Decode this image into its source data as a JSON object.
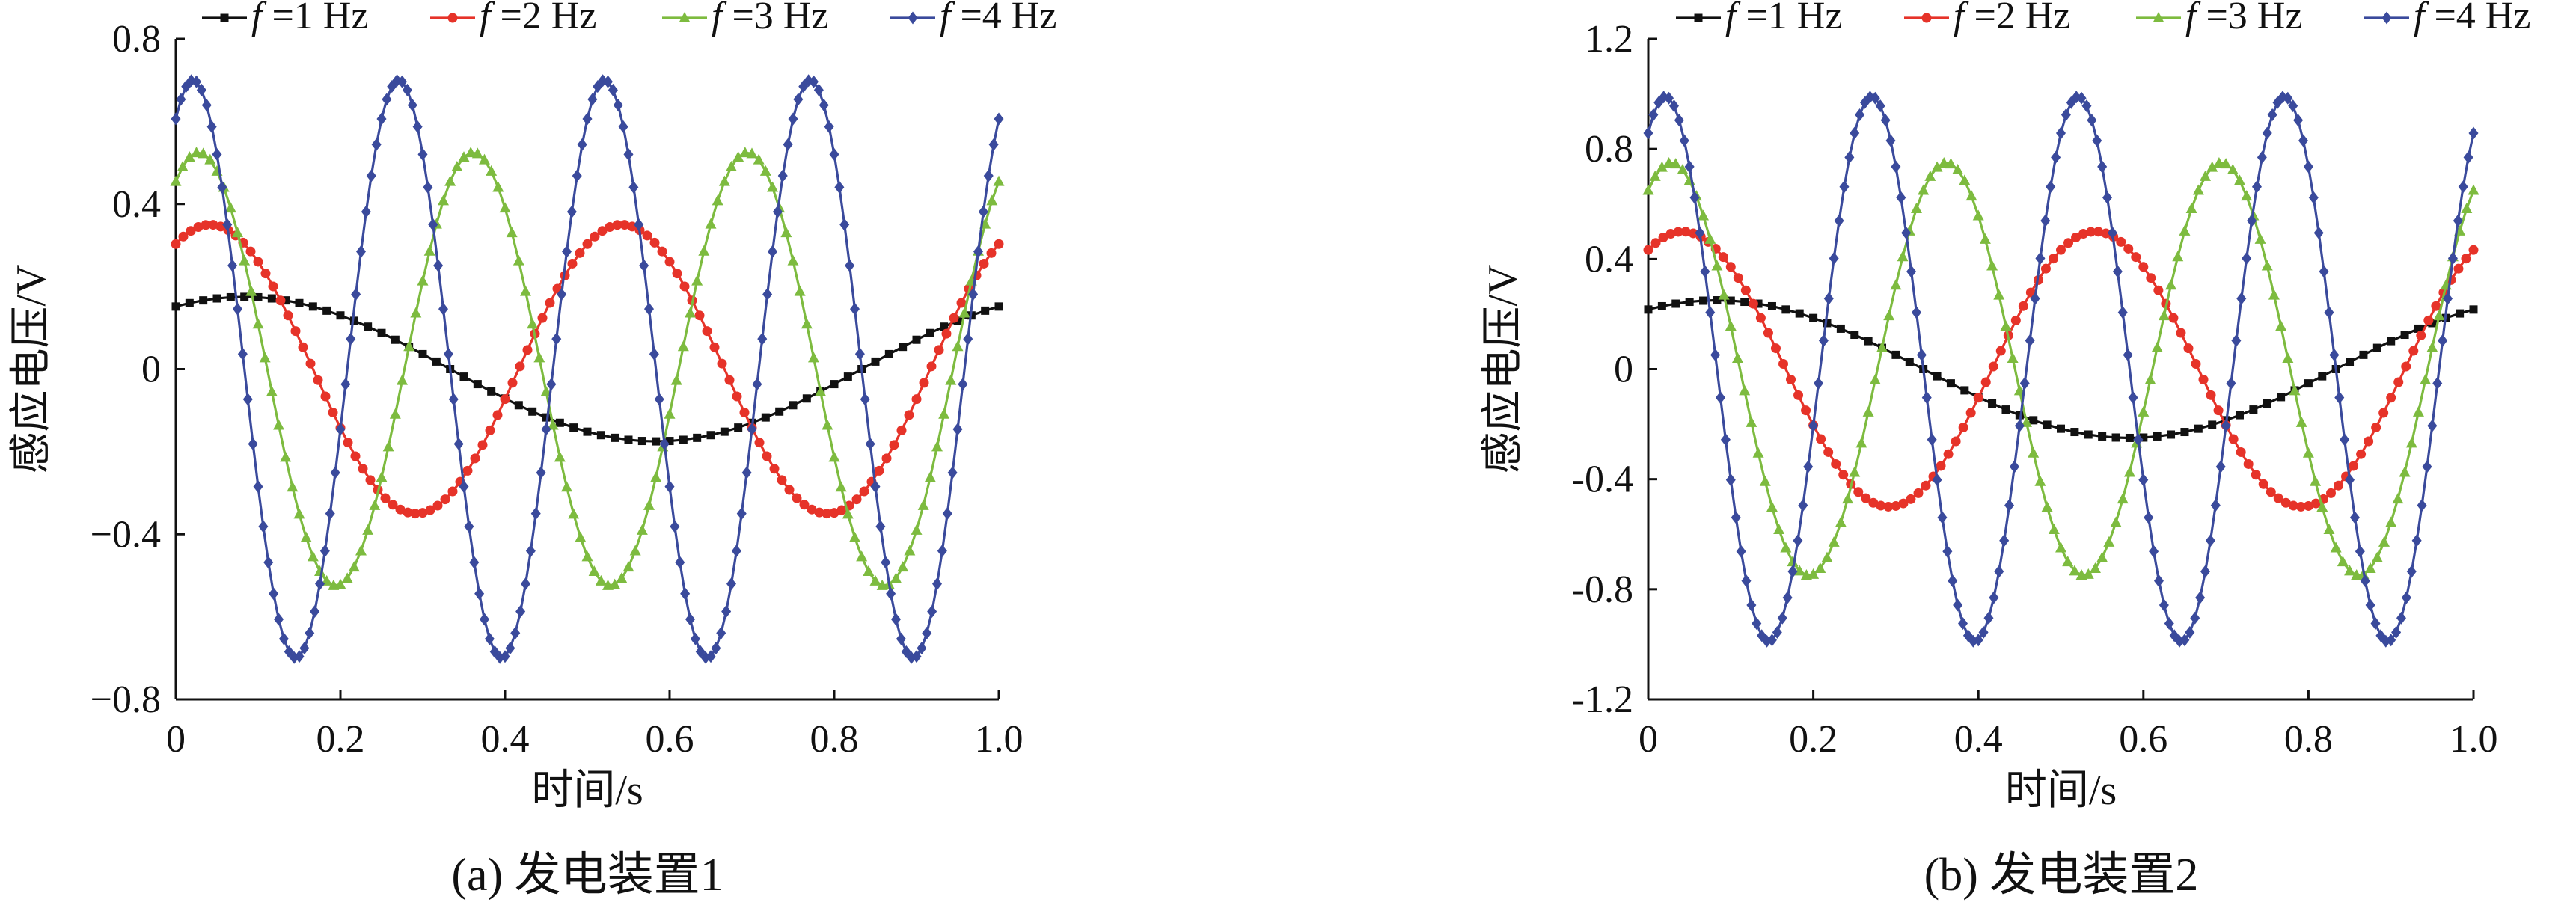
{
  "chart_data": [
    {
      "type": "line",
      "caption": "(a)  发电装置1",
      "xlabel": "时间/s",
      "ylabel": "感应电压/V",
      "xlim": [
        0,
        1.0
      ],
      "ylim": [
        -0.8,
        0.8
      ],
      "x_ticks": [
        0,
        0.2,
        0.4,
        0.6,
        0.8,
        1.0
      ],
      "x_tick_labels": [
        "0",
        "0.2",
        "0.4",
        "0.6",
        "0.8",
        "1.0"
      ],
      "y_ticks": [
        -0.8,
        -0.4,
        0,
        0.4,
        0.8
      ],
      "y_tick_labels": [
        "−0.8",
        "−0.4",
        "0",
        "0.4",
        "0.8"
      ],
      "legend_position": "top",
      "grid": false,
      "series": [
        {
          "name": "f =1 Hz",
          "label_prefix": "f",
          "label_suffix": "=1 Hz",
          "frequency_hz": 1,
          "amplitude": 0.175,
          "phase": 1.0472,
          "color": "#111111",
          "marker": "square",
          "n_points": 60
        },
        {
          "name": "f =2 Hz",
          "label_prefix": "f",
          "label_suffix": "=2 Hz",
          "frequency_hz": 2,
          "amplitude": 0.35,
          "phase": 1.0472,
          "color": "#e63329",
          "marker": "circle",
          "n_points": 110
        },
        {
          "name": "f =3 Hz",
          "label_prefix": "f",
          "label_suffix": "=3 Hz",
          "frequency_hz": 3,
          "amplitude": 0.525,
          "phase": 1.0472,
          "color": "#7dbb3f",
          "marker": "triangle",
          "n_points": 120
        },
        {
          "name": "f =4 Hz",
          "label_prefix": "f",
          "label_suffix": "=4 Hz",
          "frequency_hz": 4,
          "amplitude": 0.7,
          "phase": 1.0472,
          "color": "#3a4a9c",
          "marker": "diamond",
          "n_points": 160
        }
      ]
    },
    {
      "type": "line",
      "caption": "(b)  发电装置2",
      "xlabel": "时间/s",
      "ylabel": "感应电压/V",
      "xlim": [
        0,
        1.0
      ],
      "ylim": [
        -1.2,
        1.2
      ],
      "x_ticks": [
        0,
        0.2,
        0.4,
        0.6,
        0.8,
        1.0
      ],
      "x_tick_labels": [
        "0",
        "0.2",
        "0.4",
        "0.6",
        "0.8",
        "1.0"
      ],
      "y_ticks": [
        -1.2,
        -0.8,
        -0.4,
        0,
        0.4,
        0.8,
        1.2
      ],
      "y_tick_labels": [
        "-1.2",
        "-0.8",
        "-0.4",
        "0",
        "0.4",
        "0.8",
        "1.2"
      ],
      "legend_position": "top",
      "grid": false,
      "series": [
        {
          "name": "f =1 Hz",
          "label_prefix": "f",
          "label_suffix": "=1 Hz",
          "frequency_hz": 1,
          "amplitude": 0.25,
          "phase": 1.0472,
          "color": "#111111",
          "marker": "square",
          "n_points": 60
        },
        {
          "name": "f =2 Hz",
          "label_prefix": "f",
          "label_suffix": "=2 Hz",
          "frequency_hz": 2,
          "amplitude": 0.5,
          "phase": 1.0472,
          "color": "#e63329",
          "marker": "circle",
          "n_points": 110
        },
        {
          "name": "f =3 Hz",
          "label_prefix": "f",
          "label_suffix": "=3 Hz",
          "frequency_hz": 3,
          "amplitude": 0.75,
          "phase": 1.0472,
          "color": "#7dbb3f",
          "marker": "triangle",
          "n_points": 120
        },
        {
          "name": "f =4 Hz",
          "label_prefix": "f",
          "label_suffix": "=4 Hz",
          "frequency_hz": 4,
          "amplitude": 0.99,
          "phase": 1.0472,
          "color": "#3a4a9c",
          "marker": "diamond",
          "n_points": 160
        }
      ]
    }
  ]
}
